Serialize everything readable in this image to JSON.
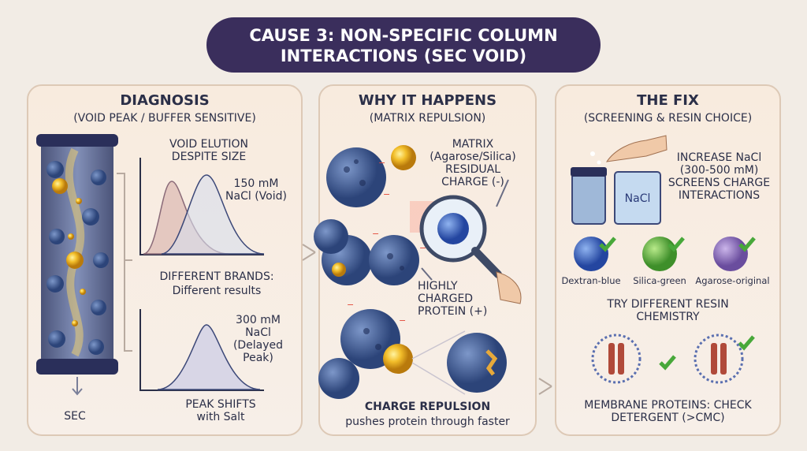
{
  "title": "CAUSE 3: NON-SPECIFIC COLUMN INTERACTIONS (SEC VOID)",
  "panels": [
    {
      "heading": "DIAGNOSIS",
      "subheading": "(VOID PEAK / BUFFER SENSITIVE)",
      "labels": [
        "VOID ELUTION DESPITE SIZE",
        "150 mM NaCl (Void)",
        "DIFFERENT BRANDS:",
        "Different results",
        "300 mM NaCl (Delayed Peak)",
        "PEAK SHIFTS with Salt",
        "SEC"
      ]
    },
    {
      "heading": "WHY IT HAPPENS",
      "subheading": "(MATRIX REPULSION)",
      "labels": [
        "MATRIX (Agarose/Silica) RESIDUAL CHARGE (-)",
        "HIGHLY CHARGED PROTEIN (+)",
        "CHARGE REPULSION",
        "pushes protein through faster"
      ]
    },
    {
      "heading": "THE FIX",
      "subheading": "(SCREENING & RESIN CHOICE)",
      "labels": [
        "INCREASE NaCl (300-500 mM) SCREENS CHARGE INTERACTIONS",
        "NaCl",
        "Dextran-blue",
        "Silica-green",
        "Agarose-original",
        "TRY DIFFERENT RESIN CHEMISTRY",
        "MEMBRANE PROTEINS: CHECK DETERGENT (>CMC)"
      ]
    }
  ]
}
